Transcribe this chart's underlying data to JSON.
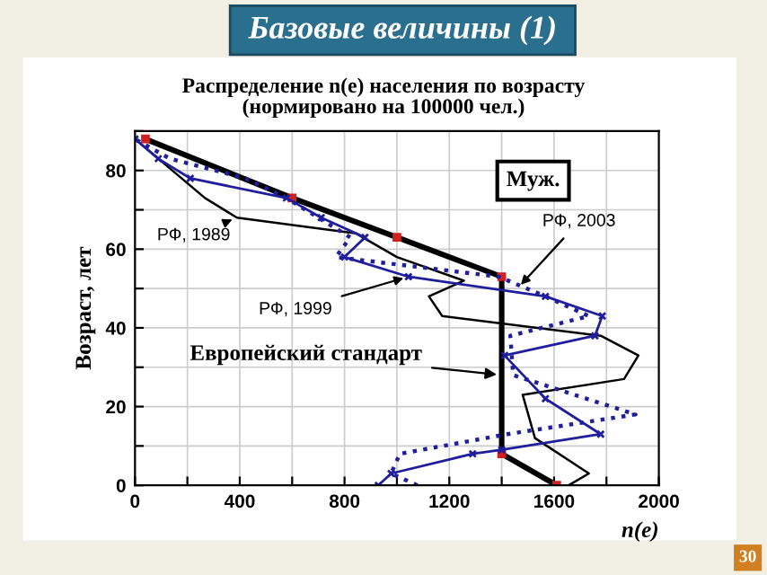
{
  "chart_data": {
    "type": "line",
    "title": "Базовые величины (1)",
    "subtitle": "Распределение n(e) населения по возрасту\n(нормировано на 100000 чел.)",
    "xlabel": "n(e)",
    "ylabel": "Возраст, лет",
    "xlim": [
      0,
      2000
    ],
    "xticks": [
      0,
      {
        "value": 200,
        "label": null
      },
      400,
      {
        "value": 600,
        "label": null
      },
      800,
      {
        "value": 1000,
        "label": null
      },
      1200,
      {
        "value": 1400,
        "label": null
      },
      1600,
      {
        "value": 1800,
        "label": null
      },
      2000
    ],
    "ylim": [
      0,
      90
    ],
    "yticks": [
      0,
      {
        "value": 10,
        "label": null
      },
      20,
      {
        "value": 30,
        "label": null
      },
      40,
      {
        "value": 50,
        "label": null
      },
      60,
      {
        "value": 70,
        "label": null
      },
      80,
      {
        "value": 90,
        "label": null
      }
    ],
    "grid": true,
    "series": [
      {
        "color": "#000000",
        "marker": "square",
        "line_style": "solid",
        "x": [
          1610,
          1400,
          1400,
          1000,
          600,
          40
        ],
        "values": [
          0,
          8,
          53,
          63,
          73,
          88
        ]
      },
      {
        "color": "#000000",
        "marker": "none",
        "line_style": "solid",
        "x": [
          1656,
          1733,
          1527,
          1480,
          1867,
          1922,
          1778,
          1173,
          1122,
          1256,
          1000,
          844,
          389,
          267,
          0
        ],
        "values": [
          0,
          3,
          12,
          23,
          27,
          33,
          38,
          43,
          48,
          52,
          58,
          64,
          68,
          73,
          88
        ]
      },
      {
        "color": "#1f1f9e",
        "marker": "cross",
        "line_style": "solid",
        "x": [
          929,
          978,
          1289,
          1400,
          1778,
          1567,
          1411,
          1756,
          1784,
          1567,
          1044,
          800,
          878,
          711,
          578,
          211,
          89,
          0
        ],
        "values": [
          0,
          3,
          8,
          9,
          13,
          22,
          33,
          38,
          43,
          48,
          53,
          58,
          63,
          68,
          73,
          78,
          83,
          88
        ]
      },
      {
        "color": "#1f1f9e",
        "marker": "none",
        "line_style": "dotted",
        "x": [
          1078,
          978,
          1011,
          1422,
          1911,
          1444,
          1433,
          1733,
          1567,
          1389,
          767,
          822,
          578,
          422,
          133,
          0
        ],
        "values": [
          0,
          3,
          8,
          13,
          18,
          28,
          38,
          43,
          48,
          53,
          58,
          63,
          73,
          78,
          83,
          88
        ]
      }
    ],
    "annotations": [
      {
        "text": "РФ, 1989",
        "x": 389,
        "y": 68
      },
      {
        "text": "РФ, 1999",
        "x": 1044,
        "y": 53
      },
      {
        "text": "РФ, 2003",
        "x": 1460,
        "y": 50
      },
      {
        "text": "Европейский стандарт",
        "x": 1400,
        "y": 28
      },
      "Муж.",
      "30"
    ]
  }
}
